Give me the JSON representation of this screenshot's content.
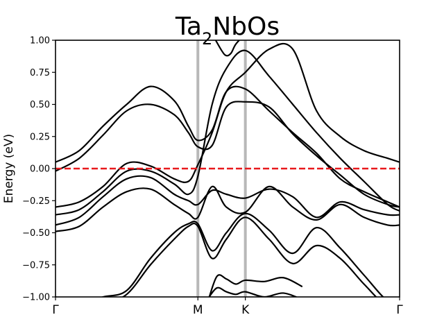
{
  "chart_data": {
    "type": "line",
    "title": "Ta2NbOs",
    "title_base": "Ta",
    "title_sub": "2",
    "title_rest": "NbOs",
    "ylabel": "Energy (eV)",
    "xlabel": "",
    "ylim": [
      -1.0,
      1.0
    ],
    "xlim": [
      0,
      7.25
    ],
    "grid": false,
    "high_symmetry_points": [
      {
        "label": "Γ",
        "x": 0
      },
      {
        "label": "M",
        "x": 3.0
      },
      {
        "label": "K",
        "x": 4.0
      },
      {
        "label": "Γ",
        "x": 7.25
      }
    ],
    "y_ticks": [
      {
        "value": 1.0,
        "label": "1.00"
      },
      {
        "value": 0.75,
        "label": "0.75"
      },
      {
        "value": 0.5,
        "label": "0.50"
      },
      {
        "value": 0.25,
        "label": "0.25"
      },
      {
        "value": 0.0,
        "label": "0.00"
      },
      {
        "value": -0.25,
        "label": "−0.25"
      },
      {
        "value": -0.5,
        "label": "−0.50"
      },
      {
        "value": -0.75,
        "label": "−0.75"
      },
      {
        "value": -1.0,
        "label": "−1.00"
      }
    ],
    "fermi_level": {
      "value": 0.0,
      "color": "#e8191c",
      "style": "dashed"
    },
    "band_color": "#000000",
    "vline_color": "#b8b8b8",
    "series": [
      {
        "x": [
          0,
          0.5,
          1,
          1.5,
          2,
          2.5,
          2.8,
          3,
          3.3,
          3.6,
          4,
          4.5,
          5,
          5.5,
          6,
          6.5,
          7,
          7.25
        ],
        "values": [
          0.05,
          0.14,
          0.33,
          0.5,
          0.64,
          0.53,
          0.33,
          0.22,
          0.3,
          0.6,
          0.62,
          0.45,
          0.28,
          0.12,
          -0.08,
          -0.18,
          -0.26,
          -0.3
        ]
      },
      {
        "x": [
          0,
          0.5,
          1,
          1.5,
          2,
          2.5,
          2.8,
          3,
          3.3,
          3.6,
          4,
          4.5,
          5,
          5.5,
          6,
          6.5,
          7,
          7.25
        ],
        "values": [
          -0.02,
          0.08,
          0.26,
          0.45,
          0.5,
          0.42,
          0.28,
          0.17,
          0.18,
          0.48,
          0.52,
          0.48,
          0.27,
          0.1,
          -0.05,
          -0.2,
          -0.28,
          -0.3
        ]
      },
      {
        "x": [
          0,
          0.5,
          1,
          1.5,
          2,
          2.5,
          2.8,
          3,
          3.3,
          3.6,
          4,
          4.5,
          5,
          5.5,
          6,
          6.5,
          7,
          7.25
        ],
        "values": [
          -0.3,
          -0.26,
          -0.14,
          0.04,
          0.02,
          -0.08,
          -0.1,
          0.03,
          0.28,
          0.6,
          0.75,
          0.93,
          0.93,
          0.45,
          0.25,
          0.14,
          0.08,
          0.05
        ]
      },
      {
        "x": [
          0,
          0.5,
          1,
          1.5,
          2,
          2.5,
          2.8,
          3,
          3.3,
          3.6,
          4,
          4.5,
          5,
          5.5,
          6,
          6.5,
          7,
          7.25
        ],
        "values": [
          -0.36,
          -0.32,
          -0.18,
          -0.02,
          -0.02,
          -0.12,
          -0.2,
          -0.06,
          0.5,
          0.78,
          0.92,
          0.72,
          0.5,
          0.28,
          0.08,
          -0.1,
          -0.28,
          -0.33
        ]
      },
      {
        "x": [
          0,
          0.5,
          1,
          1.5,
          2,
          2.5,
          2.8,
          3,
          3.3,
          3.6,
          4,
          4.5,
          5,
          5.5,
          6,
          6.5,
          7,
          7.25
        ],
        "values": [
          -0.44,
          -0.38,
          -0.22,
          -0.08,
          -0.07,
          -0.2,
          -0.25,
          -0.28,
          -0.17,
          -0.2,
          -0.23,
          -0.16,
          -0.22,
          -0.38,
          -0.26,
          -0.32,
          -0.36,
          -0.36
        ]
      },
      {
        "x": [
          0,
          0.5,
          1,
          1.5,
          2,
          2.5,
          2.8,
          3,
          3.3,
          3.6,
          4,
          4.5,
          5,
          5.5,
          6,
          6.5,
          7,
          7.25
        ],
        "values": [
          -0.49,
          -0.45,
          -0.3,
          -0.18,
          -0.16,
          -0.28,
          -0.35,
          -0.38,
          -0.14,
          -0.3,
          -0.34,
          -0.14,
          -0.3,
          -0.4,
          -0.28,
          -0.38,
          -0.44,
          -0.44
        ]
      },
      {
        "x": [
          0,
          0.5,
          1,
          1.5,
          2,
          2.5,
          2.8,
          3,
          3.3,
          3.6,
          4,
          4.5,
          5,
          5.5,
          6,
          6.5,
          7,
          7.25
        ],
        "values": [
          -1.0,
          -1.05,
          -1.0,
          -0.95,
          -0.7,
          -0.5,
          -0.43,
          -0.43,
          -0.64,
          -0.5,
          -0.35,
          -0.48,
          -0.66,
          -0.46,
          -0.62,
          -0.83,
          -1.03,
          -1.0
        ]
      },
      {
        "x": [
          0,
          0.5,
          1,
          1.5,
          2,
          2.5,
          2.8,
          3,
          3.3,
          3.6,
          4,
          4.5,
          5,
          5.5,
          6,
          6.5,
          7,
          7.25
        ],
        "values": [
          -1.02,
          -1.08,
          -1.05,
          -0.98,
          -0.75,
          -0.55,
          -0.45,
          -0.45,
          -0.7,
          -0.55,
          -0.38,
          -0.55,
          -0.74,
          -0.6,
          -0.7,
          -0.9,
          -1.08,
          -1.05
        ]
      },
      {
        "x": [
          3.2,
          3.4,
          3.6,
          3.8,
          4,
          4.4,
          4.8,
          5.2
        ],
        "values": [
          -1.05,
          -0.84,
          -0.86,
          -0.9,
          -0.87,
          -0.88,
          -0.85,
          -0.92
        ]
      },
      {
        "x": [
          3.2,
          3.4,
          3.6,
          3.8,
          4,
          4.4,
          4.8,
          5.2
        ],
        "values": [
          -1.02,
          -0.93,
          -0.96,
          -0.98,
          -0.96,
          -1.0,
          -0.97,
          -1.02
        ]
      },
      {
        "x": [
          3.3,
          3.5,
          3.6,
          3.7,
          3.8,
          4.0
        ],
        "values": [
          1.05,
          0.92,
          0.88,
          0.9,
          0.97,
          1.05
        ]
      }
    ]
  }
}
